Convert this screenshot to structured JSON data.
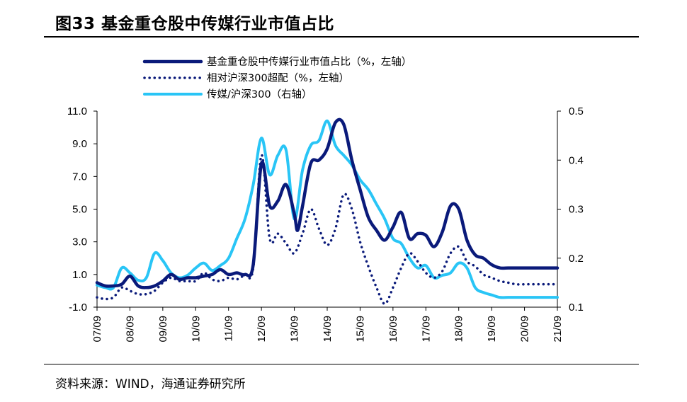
{
  "header": {
    "title": "图33 基金重仓股中传媒行业市值占比"
  },
  "footer": {
    "source": "资料来源：WIND，海通证券研究所"
  },
  "chart_data": {
    "type": "line",
    "title": "图33 基金重仓股中传媒行业市值占比",
    "categories": [
      "07/09",
      "08/09",
      "09/09",
      "10/09",
      "11/09",
      "12/09",
      "13/09",
      "14/09",
      "15/09",
      "16/09",
      "17/09",
      "18/09",
      "19/09",
      "20/09",
      "21/09"
    ],
    "left_axis": {
      "min": -1.0,
      "max": 11.0,
      "ticks": [
        "11.0",
        "9.0",
        "7.0",
        "5.0",
        "3.0",
        "1.0",
        "-1.0"
      ]
    },
    "right_axis": {
      "min": 0.1,
      "max": 0.5,
      "ticks": [
        "0.5",
        "0.4",
        "0.3",
        "0.2",
        "0.1"
      ]
    },
    "legend_position": "top",
    "grid": false,
    "series": [
      {
        "name": "基金重仓股中传媒行业市值占比（%，左轴）",
        "axis": "left",
        "style": "solid-thick",
        "color": "#0a1a7a",
        "x": [
          0,
          0.25,
          0.5,
          0.75,
          1.0,
          1.25,
          1.5,
          1.75,
          2.0,
          2.25,
          2.5,
          2.75,
          3.0,
          3.25,
          3.5,
          3.75,
          4.0,
          4.25,
          4.5,
          4.75,
          5.0,
          5.25,
          5.5,
          5.75,
          6.0,
          6.1,
          6.25,
          6.5,
          6.75,
          7.0,
          7.25,
          7.5,
          7.75,
          8.0,
          8.25,
          8.5,
          8.75,
          9.0,
          9.25,
          9.5,
          9.75,
          10.0,
          10.25,
          10.5,
          10.75,
          11.0,
          11.25,
          11.5,
          11.75,
          12.0,
          12.25,
          12.5,
          12.75,
          13.0,
          13.25,
          13.5,
          13.75,
          14.0
        ],
        "values": [
          0.5,
          0.3,
          0.3,
          0.4,
          0.9,
          0.3,
          0.2,
          0.3,
          0.6,
          1.0,
          0.7,
          0.8,
          0.8,
          0.9,
          1.0,
          1.3,
          1.0,
          1.1,
          1.0,
          1.6,
          7.8,
          5.2,
          5.5,
          6.5,
          4.7,
          3.7,
          5.2,
          7.8,
          8.0,
          8.7,
          10.3,
          10.2,
          8.0,
          6.2,
          4.5,
          3.7,
          3.1,
          3.9,
          4.8,
          3.2,
          3.5,
          3.4,
          2.7,
          3.6,
          5.2,
          5.0,
          3.1,
          2.2,
          2.0,
          1.6,
          1.4,
          1.4,
          1.4,
          1.4,
          1.4,
          1.4,
          1.4,
          1.4
        ]
      },
      {
        "name": "相对沪深300超配（%，左轴）",
        "axis": "left",
        "style": "dotted",
        "color": "#0a1a7a",
        "x": [
          0,
          0.25,
          0.5,
          0.75,
          1.0,
          1.25,
          1.5,
          1.75,
          2.0,
          2.25,
          2.5,
          2.75,
          3.0,
          3.25,
          3.5,
          3.75,
          4.0,
          4.25,
          4.5,
          4.75,
          5.0,
          5.25,
          5.5,
          5.75,
          6.0,
          6.25,
          6.5,
          6.75,
          7.0,
          7.25,
          7.5,
          7.75,
          8.0,
          8.25,
          8.5,
          8.75,
          9.0,
          9.25,
          9.5,
          9.75,
          10.0,
          10.25,
          10.5,
          10.75,
          11.0,
          11.25,
          11.5,
          11.75,
          12.0,
          12.25,
          12.5,
          12.75,
          13.0,
          13.25,
          13.5,
          13.75,
          14.0
        ],
        "values": [
          -0.4,
          -0.5,
          -0.4,
          0.2,
          0.0,
          -0.2,
          -0.2,
          0.0,
          0.5,
          0.8,
          0.6,
          0.6,
          0.6,
          1.1,
          0.7,
          0.6,
          0.8,
          0.7,
          1.0,
          1.4,
          8.3,
          3.2,
          3.5,
          2.9,
          2.3,
          3.5,
          5.0,
          3.8,
          2.8,
          3.8,
          5.9,
          5.0,
          3.0,
          1.5,
          0.2,
          -0.8,
          0.2,
          1.4,
          2.3,
          1.8,
          1.1,
          0.8,
          1.2,
          2.3,
          2.7,
          1.8,
          1.5,
          1.0,
          0.8,
          0.6,
          0.5,
          0.4,
          0.4,
          0.4,
          0.4,
          0.4,
          0.4
        ]
      },
      {
        "name": "传媒/沪深300（右轴）",
        "axis": "right",
        "style": "solid",
        "color": "#29c5f6",
        "x": [
          0,
          0.25,
          0.5,
          0.75,
          1.0,
          1.25,
          1.5,
          1.75,
          2.0,
          2.25,
          2.5,
          2.75,
          3.0,
          3.25,
          3.5,
          3.75,
          4.0,
          4.25,
          4.5,
          4.75,
          5.0,
          5.25,
          5.5,
          5.75,
          6.0,
          6.25,
          6.5,
          6.75,
          7.0,
          7.25,
          7.5,
          7.75,
          8.0,
          8.25,
          8.5,
          8.75,
          9.0,
          9.25,
          9.5,
          9.75,
          10.0,
          10.25,
          10.5,
          10.75,
          11.0,
          11.25,
          11.5,
          11.75,
          12.0,
          12.25,
          12.5,
          12.75,
          13.0,
          13.25,
          13.5,
          13.75,
          14.0
        ],
        "values": [
          0.145,
          0.14,
          0.14,
          0.18,
          0.17,
          0.155,
          0.16,
          0.21,
          0.195,
          0.17,
          0.16,
          0.165,
          0.18,
          0.19,
          0.175,
          0.185,
          0.2,
          0.24,
          0.28,
          0.35,
          0.445,
          0.37,
          0.41,
          0.42,
          0.28,
          0.38,
          0.43,
          0.44,
          0.48,
          0.43,
          0.41,
          0.39,
          0.36,
          0.34,
          0.31,
          0.28,
          0.24,
          0.23,
          0.2,
          0.18,
          0.185,
          0.16,
          0.165,
          0.17,
          0.19,
          0.18,
          0.14,
          0.13,
          0.125,
          0.12,
          0.12,
          0.12,
          0.12,
          0.12,
          0.12,
          0.12,
          0.12
        ]
      }
    ]
  }
}
